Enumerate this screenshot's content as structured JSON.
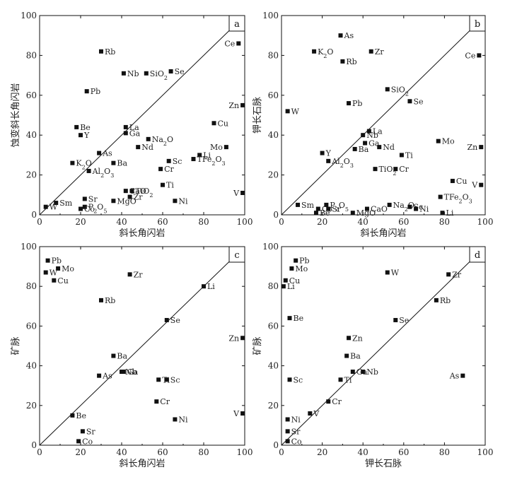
{
  "chart_data": [
    {
      "type": "scatter",
      "panel": "a",
      "xlabel": "斜长角闪岩",
      "ylabel": "蚀变斜长角闪岩",
      "xlim": [
        0,
        100
      ],
      "ylim": [
        0,
        100
      ],
      "xticks": [
        "0",
        "20",
        "40",
        "60",
        "80",
        "100"
      ],
      "yticks": [
        "0",
        "20",
        "40",
        "60",
        "80",
        "100"
      ],
      "points": [
        {
          "label": "Ce",
          "x": 97,
          "y": 86
        },
        {
          "label": "Rb",
          "x": 30,
          "y": 82
        },
        {
          "label": "Nb",
          "x": 41,
          "y": 71
        },
        {
          "label": "SiO2",
          "x": 52,
          "y": 71
        },
        {
          "label": "Se",
          "x": 64,
          "y": 72
        },
        {
          "label": "Pb",
          "x": 23,
          "y": 62
        },
        {
          "label": "Zn",
          "x": 99,
          "y": 55
        },
        {
          "label": "Be",
          "x": 18,
          "y": 44
        },
        {
          "label": "Y",
          "x": 20,
          "y": 40
        },
        {
          "label": "La",
          "x": 42,
          "y": 44
        },
        {
          "label": "Ga",
          "x": 42,
          "y": 41
        },
        {
          "label": "Cu",
          "x": 85,
          "y": 46
        },
        {
          "label": "Na2O",
          "x": 53,
          "y": 38
        },
        {
          "label": "Nd",
          "x": 48,
          "y": 34
        },
        {
          "label": "As",
          "x": 29,
          "y": 31
        },
        {
          "label": "Mo",
          "x": 91,
          "y": 34
        },
        {
          "label": "Li",
          "x": 78,
          "y": 30
        },
        {
          "label": "TFe2O3",
          "x": 75,
          "y": 28
        },
        {
          "label": "K2O",
          "x": 16,
          "y": 26
        },
        {
          "label": "Ba",
          "x": 36,
          "y": 26
        },
        {
          "label": "Sc",
          "x": 63,
          "y": 27
        },
        {
          "label": "Al2O3",
          "x": 24,
          "y": 22
        },
        {
          "label": "Cr",
          "x": 59,
          "y": 23
        },
        {
          "label": "V",
          "x": 99,
          "y": 11
        },
        {
          "label": "CaO",
          "x": 42,
          "y": 12
        },
        {
          "label": "TiO2",
          "x": 45,
          "y": 12
        },
        {
          "label": "Ti",
          "x": 60,
          "y": 15
        },
        {
          "label": "Zr",
          "x": 44,
          "y": 9
        },
        {
          "label": "Sr",
          "x": 22,
          "y": 8
        },
        {
          "label": "Sm",
          "x": 8,
          "y": 6
        },
        {
          "label": "W",
          "x": 3,
          "y": 4
        },
        {
          "label": "MgO",
          "x": 36,
          "y": 7
        },
        {
          "label": "Ni",
          "x": 66,
          "y": 7
        },
        {
          "label": "P2O5",
          "x": 22,
          "y": 4
        },
        {
          "label": "Co",
          "x": 20,
          "y": 3
        }
      ]
    },
    {
      "type": "scatter",
      "panel": "b",
      "xlabel": "斜长角闪岩",
      "ylabel": "钾长石脉",
      "xlim": [
        0,
        100
      ],
      "ylim": [
        0,
        100
      ],
      "xticks": [
        "0",
        "20",
        "40",
        "60",
        "80",
        "100"
      ],
      "yticks": [
        "0",
        "20",
        "40",
        "60",
        "80",
        "100"
      ],
      "points": [
        {
          "label": "As",
          "x": 29,
          "y": 90
        },
        {
          "label": "K2O",
          "x": 16,
          "y": 82
        },
        {
          "label": "Zr",
          "x": 44,
          "y": 82
        },
        {
          "label": "Rb",
          "x": 30,
          "y": 77
        },
        {
          "label": "Ce",
          "x": 97,
          "y": 80
        },
        {
          "label": "SiO2",
          "x": 52,
          "y": 63
        },
        {
          "label": "Pb",
          "x": 33,
          "y": 56
        },
        {
          "label": "Se",
          "x": 63,
          "y": 57
        },
        {
          "label": "W",
          "x": 3,
          "y": 52
        },
        {
          "label": "Nb",
          "x": 40,
          "y": 40
        },
        {
          "label": "La",
          "x": 43,
          "y": 42
        },
        {
          "label": "Ga",
          "x": 41,
          "y": 36
        },
        {
          "label": "Mo",
          "x": 77,
          "y": 37
        },
        {
          "label": "Zn",
          "x": 98,
          "y": 34
        },
        {
          "label": "Ba",
          "x": 36,
          "y": 33
        },
        {
          "label": "Nd",
          "x": 48,
          "y": 34
        },
        {
          "label": "Y",
          "x": 20,
          "y": 31
        },
        {
          "label": "Al2O3",
          "x": 23,
          "y": 27
        },
        {
          "label": "Ti",
          "x": 59,
          "y": 30
        },
        {
          "label": "TiO2",
          "x": 46,
          "y": 23
        },
        {
          "label": "Cr",
          "x": 56,
          "y": 23
        },
        {
          "label": "Cu",
          "x": 84,
          "y": 17
        },
        {
          "label": "V",
          "x": 98,
          "y": 15
        },
        {
          "label": "TFe2O3",
          "x": 78,
          "y": 9
        },
        {
          "label": "Sm",
          "x": 8,
          "y": 5
        },
        {
          "label": "Co",
          "x": 18,
          "y": 3
        },
        {
          "label": "P2O5",
          "x": 22,
          "y": 5
        },
        {
          "label": "Sr",
          "x": 23,
          "y": 3
        },
        {
          "label": "Be",
          "x": 17,
          "y": 1
        },
        {
          "label": "MgO",
          "x": 35,
          "y": 1
        },
        {
          "label": "CaO",
          "x": 42,
          "y": 3
        },
        {
          "label": "Na2O",
          "x": 53,
          "y": 5
        },
        {
          "label": "Sc",
          "x": 63,
          "y": 4
        },
        {
          "label": "Ni",
          "x": 66,
          "y": 3
        },
        {
          "label": "Li",
          "x": 79,
          "y": 1
        }
      ]
    },
    {
      "type": "scatter",
      "panel": "c",
      "xlabel": "斜长角闪岩",
      "ylabel": "矿脉",
      "xlim": [
        0,
        100
      ],
      "ylim": [
        0,
        100
      ],
      "xticks": [
        "0",
        "20",
        "40",
        "60",
        "80",
        "100"
      ],
      "yticks": [
        "0",
        "20",
        "40",
        "60",
        "80",
        "100"
      ],
      "points": [
        {
          "label": "Pb",
          "x": 4,
          "y": 93
        },
        {
          "label": "Mo",
          "x": 9,
          "y": 89
        },
        {
          "label": "W",
          "x": 3,
          "y": 87
        },
        {
          "label": "Cu",
          "x": 7,
          "y": 83
        },
        {
          "label": "Zr",
          "x": 44,
          "y": 86
        },
        {
          "label": "Li",
          "x": 80,
          "y": 80
        },
        {
          "label": "Rb",
          "x": 30,
          "y": 73
        },
        {
          "label": "Se",
          "x": 62,
          "y": 63
        },
        {
          "label": "Zn",
          "x": 99,
          "y": 54
        },
        {
          "label": "Ba",
          "x": 36,
          "y": 45
        },
        {
          "label": "Nb",
          "x": 40,
          "y": 37
        },
        {
          "label": "Ga",
          "x": 41,
          "y": 37
        },
        {
          "label": "As",
          "x": 29,
          "y": 35
        },
        {
          "label": "Ti",
          "x": 58,
          "y": 33
        },
        {
          "label": "Sc",
          "x": 62,
          "y": 33
        },
        {
          "label": "Cr",
          "x": 57,
          "y": 22
        },
        {
          "label": "V",
          "x": 99,
          "y": 16
        },
        {
          "label": "Be",
          "x": 16,
          "y": 15
        },
        {
          "label": "Ni",
          "x": 66,
          "y": 13
        },
        {
          "label": "Sr",
          "x": 21,
          "y": 7
        },
        {
          "label": "Co",
          "x": 19,
          "y": 2
        }
      ]
    },
    {
      "type": "scatter",
      "panel": "d",
      "xlabel": "钾长石脉",
      "ylabel": "矿脉",
      "xlim": [
        0,
        100
      ],
      "ylim": [
        0,
        100
      ],
      "xticks": [
        "0",
        "20",
        "40",
        "60",
        "80",
        "100"
      ],
      "yticks": [
        "0",
        "20",
        "40",
        "60",
        "80",
        "100"
      ],
      "points": [
        {
          "label": "Pb",
          "x": 7,
          "y": 93
        },
        {
          "label": "Mo",
          "x": 5,
          "y": 89
        },
        {
          "label": "Cu",
          "x": 2,
          "y": 83
        },
        {
          "label": "Li",
          "x": 1,
          "y": 80
        },
        {
          "label": "W",
          "x": 52,
          "y": 87
        },
        {
          "label": "Zr",
          "x": 82,
          "y": 86
        },
        {
          "label": "Rb",
          "x": 76,
          "y": 73
        },
        {
          "label": "Se",
          "x": 56,
          "y": 63
        },
        {
          "label": "Be",
          "x": 4,
          "y": 64
        },
        {
          "label": "Zn",
          "x": 33,
          "y": 54
        },
        {
          "label": "Ba",
          "x": 32,
          "y": 45
        },
        {
          "label": "Ga",
          "x": 35,
          "y": 37
        },
        {
          "label": "Nb",
          "x": 40,
          "y": 37
        },
        {
          "label": "As",
          "x": 89,
          "y": 35
        },
        {
          "label": "Sc",
          "x": 4,
          "y": 33
        },
        {
          "label": "Ti",
          "x": 29,
          "y": 33
        },
        {
          "label": "Cr",
          "x": 23,
          "y": 22
        },
        {
          "label": "V",
          "x": 14,
          "y": 16
        },
        {
          "label": "Ni",
          "x": 3,
          "y": 13
        },
        {
          "label": "Sr",
          "x": 3,
          "y": 7
        },
        {
          "label": "Co",
          "x": 3,
          "y": 2
        }
      ]
    }
  ]
}
